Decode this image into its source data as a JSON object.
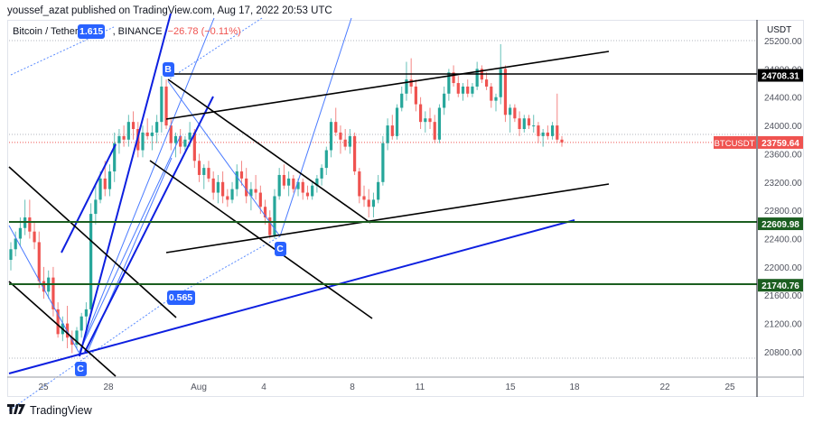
{
  "header": {
    "published": "youssef_azat published on TradingView.com, Aug 17, 2022 20:53 UTC"
  },
  "legend": {
    "symbol": "Bitcoin / TetherUS, 1h, BINANCE",
    "symbol_visible": "Bitcoin / Tether",
    "exchange": ", BINANCE",
    "change": "−26.78 (−0.11%)"
  },
  "footer": {
    "brand": "TradingView",
    "logo": "17"
  },
  "colors": {
    "up": "#26a69a",
    "down": "#ef5350",
    "level_green": "#1b5e20",
    "trend_blue": "#0d1fe0",
    "fib_blue": "#2962ff",
    "label_blue": "#2962ff",
    "black": "#000000"
  },
  "chart_data": {
    "type": "candlestick",
    "title": "Bitcoin / TetherUS, BINANCE",
    "currency": "USDT",
    "last_price": 23759.64,
    "last_price_label": "BTCUSDT",
    "price_change": "-26.78 (-0.11%)",
    "y_axis": {
      "label": "USDT",
      "ticks": [
        "25200.00",
        "24800.00",
        "24400.00",
        "24000.00",
        "23600.00",
        "23200.00",
        "22800.00",
        "22400.00",
        "22000.00",
        "21600.00",
        "21200.00",
        "20800.00"
      ],
      "range": [
        20450,
        25400
      ]
    },
    "x_axis": {
      "ticks": [
        "25",
        "28",
        "Aug",
        "4",
        "8",
        "11",
        "15",
        "18",
        "22",
        "25"
      ]
    },
    "price_labels": [
      {
        "value": "24708.31",
        "style": "black"
      },
      {
        "value": "23759.64",
        "style": "red",
        "tag": "BTCUSDT"
      },
      {
        "value": "22609.98",
        "style": "green"
      },
      {
        "value": "21740.76",
        "style": "green"
      }
    ],
    "horizontal_levels": [
      {
        "price": 24708.31,
        "color": "black"
      },
      {
        "price": 22609.98,
        "color": "green"
      },
      {
        "price": 21740.76,
        "color": "green"
      }
    ],
    "annotations": [
      {
        "label": "B",
        "type": "point-label"
      },
      {
        "label": "C",
        "type": "point-label"
      },
      {
        "label": "C",
        "type": "point-label"
      },
      {
        "label": "1.615",
        "type": "fib-ratio"
      },
      {
        "label": "0.565",
        "type": "fib-ratio"
      }
    ],
    "approx_ohlc_4h": [
      [
        22100,
        22350,
        21950,
        22250
      ],
      [
        22250,
        22500,
        22150,
        22400
      ],
      [
        22400,
        22700,
        22300,
        22550
      ],
      [
        22550,
        22950,
        22450,
        22700
      ],
      [
        22700,
        22950,
        22400,
        22500
      ],
      [
        22500,
        22650,
        22250,
        22350
      ],
      [
        22350,
        22500,
        21700,
        21800
      ],
      [
        21800,
        22000,
        21550,
        21650
      ],
      [
        21650,
        21950,
        21550,
        21850
      ],
      [
        21850,
        22000,
        21300,
        21400
      ],
      [
        21400,
        21500,
        21000,
        21050
      ],
      [
        21050,
        21300,
        20950,
        21200
      ],
      [
        21200,
        21450,
        20850,
        21000
      ],
      [
        21000,
        21100,
        20780,
        20900
      ],
      [
        20900,
        21150,
        20850,
        21100
      ],
      [
        21100,
        21350,
        21000,
        21300
      ],
      [
        21300,
        21500,
        21100,
        21400
      ],
      [
        21400,
        22900,
        21350,
        22750
      ],
      [
        22750,
        23150,
        22600,
        22950
      ],
      [
        22950,
        23350,
        22900,
        23250
      ],
      [
        23250,
        23500,
        23000,
        23100
      ],
      [
        23100,
        23450,
        23000,
        23350
      ],
      [
        23350,
        23900,
        23200,
        23750
      ],
      [
        23750,
        23950,
        23600,
        23850
      ],
      [
        23850,
        24000,
        23700,
        23800
      ],
      [
        23800,
        24150,
        23700,
        24050
      ],
      [
        24050,
        24200,
        23800,
        23950
      ],
      [
        23950,
        24050,
        23550,
        23650
      ],
      [
        23650,
        24000,
        23550,
        23900
      ],
      [
        23900,
        24100,
        23800,
        23850
      ],
      [
        23850,
        24000,
        23650,
        23900
      ],
      [
        23900,
        24150,
        23750,
        24050
      ],
      [
        24050,
        24700,
        23900,
        24550
      ],
      [
        24550,
        24650,
        23950,
        24000
      ],
      [
        24000,
        24100,
        23650,
        23750
      ],
      [
        23750,
        23900,
        23550,
        23850
      ],
      [
        23850,
        23950,
        23600,
        23700
      ],
      [
        23700,
        23850,
        23650,
        23800
      ],
      [
        23800,
        24050,
        23700,
        23900
      ],
      [
        23900,
        23950,
        23400,
        23500
      ],
      [
        23500,
        23600,
        23200,
        23300
      ],
      [
        23300,
        23450,
        23100,
        23400
      ],
      [
        23400,
        23500,
        23200,
        23250
      ],
      [
        23250,
        23350,
        22950,
        23050
      ],
      [
        23050,
        23300,
        22900,
        23200
      ],
      [
        23200,
        23350,
        22900,
        23000
      ],
      [
        23000,
        23100,
        22850,
        22950
      ],
      [
        22950,
        23200,
        22900,
        23100
      ],
      [
        23100,
        23450,
        23000,
        23350
      ],
      [
        23350,
        23500,
        23150,
        23250
      ],
      [
        23250,
        23400,
        22900,
        23000
      ],
      [
        23000,
        23200,
        22800,
        23100
      ],
      [
        23100,
        23300,
        22950,
        23050
      ],
      [
        23050,
        23150,
        22750,
        22850
      ],
      [
        22850,
        22950,
        22600,
        22700
      ],
      [
        22700,
        22800,
        22400,
        22450
      ],
      [
        22450,
        23100,
        22400,
        23000
      ],
      [
        23000,
        23400,
        22950,
        23300
      ],
      [
        23300,
        23450,
        23100,
        23150
      ],
      [
        23150,
        23350,
        23000,
        23250
      ],
      [
        23250,
        23300,
        23050,
        23100
      ],
      [
        23100,
        23250,
        23000,
        23200
      ],
      [
        23200,
        23250,
        22950,
        23050
      ],
      [
        23050,
        23150,
        22950,
        23000
      ],
      [
        23000,
        23200,
        22950,
        23150
      ],
      [
        23150,
        23300,
        23050,
        23250
      ],
      [
        23250,
        23450,
        23150,
        23400
      ],
      [
        23400,
        23700,
        23300,
        23650
      ],
      [
        23650,
        24100,
        23550,
        24050
      ],
      [
        24050,
        24250,
        23850,
        23900
      ],
      [
        23900,
        24000,
        23600,
        23800
      ],
      [
        23800,
        23950,
        23650,
        23700
      ],
      [
        23700,
        23950,
        23600,
        23850
      ],
      [
        23850,
        23900,
        23300,
        23350
      ],
      [
        23350,
        23400,
        22900,
        23000
      ],
      [
        23000,
        23150,
        22850,
        22950
      ],
      [
        22950,
        23100,
        22700,
        22850
      ],
      [
        22850,
        23050,
        22700,
        22950
      ],
      [
        22950,
        23300,
        22900,
        23200
      ],
      [
        23200,
        23850,
        23150,
        23750
      ],
      [
        23750,
        24100,
        23650,
        24000
      ],
      [
        24000,
        24150,
        23800,
        23850
      ],
      [
        23850,
        24300,
        23800,
        24250
      ],
      [
        24250,
        24550,
        24200,
        24450
      ],
      [
        24450,
        24900,
        24350,
        24650
      ],
      [
        24650,
        24950,
        24450,
        24550
      ],
      [
        24550,
        24650,
        24200,
        24300
      ],
      [
        24300,
        24400,
        23950,
        24050
      ],
      [
        24050,
        24200,
        23900,
        24100
      ],
      [
        24100,
        24250,
        23950,
        24050
      ],
      [
        24050,
        24150,
        23750,
        23800
      ],
      [
        23800,
        24300,
        23750,
        24250
      ],
      [
        24250,
        24550,
        24150,
        24450
      ],
      [
        24450,
        24800,
        24350,
        24750
      ],
      [
        24750,
        24850,
        24550,
        24600
      ],
      [
        24600,
        24700,
        24400,
        24450
      ],
      [
        24450,
        24600,
        24350,
        24550
      ],
      [
        24550,
        24650,
        24400,
        24450
      ],
      [
        24450,
        24600,
        24400,
        24550
      ],
      [
        24550,
        24900,
        24500,
        24800
      ],
      [
        24800,
        24850,
        24600,
        24650
      ],
      [
        24650,
        24750,
        24500,
        24550
      ],
      [
        24550,
        24600,
        24250,
        24350
      ],
      [
        24350,
        24450,
        24200,
        24400
      ],
      [
        24400,
        25150,
        24300,
        24800
      ],
      [
        24800,
        24850,
        24050,
        24150
      ],
      [
        24150,
        24300,
        23900,
        24250
      ],
      [
        24250,
        24300,
        24050,
        24100
      ],
      [
        24100,
        24200,
        23850,
        23950
      ],
      [
        23950,
        24150,
        23900,
        24100
      ],
      [
        24100,
        24150,
        23950,
        24000
      ],
      [
        24000,
        24150,
        23900,
        24000
      ],
      [
        24000,
        24050,
        23750,
        23850
      ],
      [
        23850,
        23950,
        23700,
        23900
      ],
      [
        23900,
        24000,
        23800,
        23850
      ],
      [
        23850,
        24050,
        23800,
        24000
      ],
      [
        24000,
        24450,
        23750,
        23800
      ],
      [
        23800,
        23850,
        23700,
        23760
      ]
    ]
  }
}
